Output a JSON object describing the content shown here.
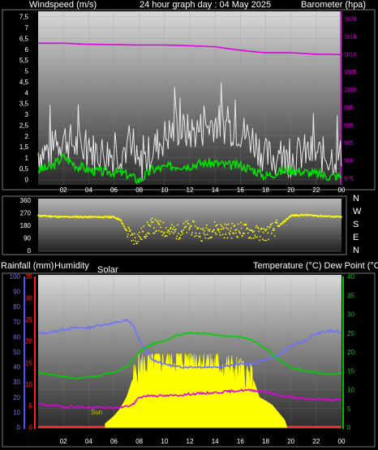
{
  "header": {
    "left_label": "Windspeed (m/s)",
    "title": "24 hour graph day : 04 May 2025",
    "right_label": "Barometer (hpa)"
  },
  "colors": {
    "windspeed": "#e8e8e8",
    "wind_avg": "#00e000",
    "barometer": "#e000e0",
    "direction": "#ffff00",
    "humidity": "#7070ff",
    "temperature": "#00d000",
    "dewpoint": "#e000e0",
    "solar": "#ffff00",
    "rain": "#ff2020"
  },
  "chart_data": [
    {
      "type": "line",
      "name": "wind-barometer",
      "x_ticks": [
        "02",
        "04",
        "06",
        "08",
        "10",
        "12",
        "14",
        "16",
        "18",
        "20",
        "22",
        "00"
      ],
      "y_left_ticks": [
        "0",
        "0,5",
        "1",
        "1,5",
        "2",
        "2,5",
        "3",
        "3,5",
        "4",
        "4,5",
        "5",
        "5,5",
        "6",
        "6,5",
        "7",
        "7,5"
      ],
      "y_left_range": [
        0,
        8
      ],
      "y_right_ticks": [
        "975",
        "980",
        "985",
        "990",
        "995",
        "1000",
        "1005",
        "1010",
        "1015",
        "1020"
      ],
      "y_right_range": [
        973,
        1022
      ],
      "series": [
        {
          "key": "barometer",
          "axis": "right",
          "hours": [
            0,
            2,
            4,
            6,
            8,
            10,
            12,
            14,
            16,
            18,
            20,
            22,
            24
          ],
          "values": [
            1013,
            1013,
            1012.7,
            1012.6,
            1012.5,
            1012.5,
            1012.3,
            1012,
            1011,
            1010.3,
            1010.3,
            1009.9,
            1009.8
          ]
        },
        {
          "key": "windspeed",
          "axis": "left",
          "hours": [
            0,
            1,
            2,
            3,
            4,
            5,
            6,
            7,
            8,
            9,
            10,
            11,
            12,
            13,
            14,
            15,
            16,
            17,
            18,
            19,
            20,
            21,
            22,
            23,
            24
          ],
          "values": [
            1.5,
            1.6,
            2.2,
            1.8,
            1.6,
            1.5,
            1.4,
            1.7,
            0.8,
            1.6,
            2.2,
            2.6,
            2.4,
            2.6,
            2.9,
            2.7,
            2.5,
            2.1,
            1.3,
            1.2,
            1.2,
            1.5,
            1.4,
            1.3,
            1.3
          ]
        },
        {
          "key": "wind_avg",
          "axis": "left",
          "hours": [
            0,
            1,
            2,
            3,
            4,
            5,
            6,
            7,
            8,
            9,
            10,
            11,
            12,
            13,
            14,
            15,
            16,
            17,
            18,
            19,
            20,
            21,
            22,
            23,
            24
          ],
          "values": [
            0.7,
            0.8,
            1.3,
            0.9,
            0.7,
            0.6,
            0.6,
            0.5,
            0.2,
            0.7,
            0.8,
            0.9,
            0.9,
            1.0,
            1.0,
            0.9,
            0.9,
            0.7,
            0.4,
            0.6,
            0.7,
            0.6,
            0.5,
            0.4,
            0.4
          ]
        }
      ]
    },
    {
      "type": "scatter",
      "name": "wind-direction",
      "y_left_ticks": [
        "360",
        "270",
        "180",
        "90",
        "0"
      ],
      "y_range": [
        0,
        360
      ],
      "compass_labels": [
        "N",
        "W",
        "S",
        "E",
        "N"
      ],
      "series": [
        {
          "key": "direction",
          "hours": [
            0,
            1,
            2,
            3,
            4,
            5,
            6,
            6.5,
            7,
            7.5,
            8,
            9,
            10,
            11,
            12,
            13,
            14,
            15,
            16,
            17,
            18,
            19,
            20,
            21,
            22,
            23,
            24
          ],
          "values": [
            250,
            245,
            240,
            242,
            240,
            240,
            240,
            220,
            140,
            90,
            100,
            180,
            150,
            130,
            170,
            120,
            160,
            140,
            150,
            130,
            120,
            170,
            250,
            255,
            250,
            245,
            240
          ]
        }
      ]
    },
    {
      "type": "line",
      "name": "temp-humidity-solar",
      "header_left": "Rainfall (mm)",
      "header_humidity": "Humidity",
      "header_solar": "Solar",
      "header_right": "Temperature (°C) Dew Point (°C)",
      "sun_label": "Sun",
      "humidity_ticks": [
        "100",
        "90",
        "80",
        "70",
        "60",
        "50",
        "40",
        "30",
        "20",
        "10",
        "0"
      ],
      "rain_ticks": [
        "35",
        "30",
        "25",
        "20",
        "15",
        "10",
        "5",
        "0"
      ],
      "temp_ticks": [
        "40",
        "35",
        "30",
        "25",
        "20",
        "15",
        "10",
        "5",
        "0"
      ],
      "temp_range": [
        0,
        40
      ],
      "humidity_range": [
        0,
        100
      ],
      "x_ticks": [
        "02",
        "04",
        "06",
        "08",
        "10",
        "12",
        "14",
        "16",
        "18",
        "20",
        "22",
        "00"
      ],
      "series": [
        {
          "key": "humidity",
          "axis": "humidity",
          "hours": [
            0,
            1,
            2,
            3,
            4,
            5,
            6,
            7,
            7.5,
            8,
            9,
            10,
            11,
            12,
            13,
            14,
            15,
            16,
            17,
            18,
            19,
            20,
            21,
            22,
            23,
            24
          ],
          "values": [
            62,
            63,
            65,
            66,
            66,
            68,
            69,
            71,
            68,
            58,
            45,
            42,
            40,
            40,
            40,
            40,
            41,
            42,
            42,
            45,
            48,
            54,
            57,
            62,
            64,
            63
          ]
        },
        {
          "key": "temperature",
          "axis": "temp",
          "hours": [
            0,
            1,
            2,
            3,
            4,
            5,
            6,
            7,
            7.5,
            8,
            9,
            10,
            11,
            12,
            13,
            14,
            15,
            16,
            17,
            18,
            19,
            20,
            21,
            22,
            23,
            24
          ],
          "values": [
            14.5,
            14,
            13.5,
            13,
            13.3,
            13.8,
            14.5,
            16,
            18,
            20,
            22,
            23,
            24.5,
            25,
            25,
            24.5,
            24,
            24,
            23,
            21,
            18,
            16,
            15,
            14.5,
            14,
            14.5
          ]
        },
        {
          "key": "dewpoint",
          "axis": "temp",
          "hours": [
            0,
            1,
            2,
            3,
            4,
            5,
            6,
            7,
            7.5,
            8,
            9,
            10,
            11,
            12,
            13,
            14,
            15,
            16,
            17,
            18,
            19,
            20,
            21,
            22,
            23,
            24
          ],
          "values": [
            6.2,
            5.8,
            5.5,
            5.5,
            5.3,
            5.3,
            5.2,
            5.5,
            6,
            8,
            8.5,
            8.3,
            8.5,
            8.8,
            9,
            9.2,
            9.5,
            9.8,
            9.8,
            9.5,
            8.5,
            8,
            7.5,
            7.5,
            7.3,
            7.5
          ]
        },
        {
          "key": "solar",
          "axis": "temp",
          "hours": [
            5.3,
            6,
            6.5,
            7,
            7.5,
            8,
            9,
            10,
            11,
            12,
            13,
            14,
            15,
            16,
            17,
            17.5,
            18,
            18.5,
            19,
            19.5,
            19.7
          ],
          "values": [
            1,
            3,
            5,
            8,
            13,
            16,
            17,
            18,
            18,
            19,
            18,
            17,
            16,
            15,
            13,
            8,
            7,
            6,
            4,
            2,
            0
          ]
        },
        {
          "key": "rain",
          "axis": "rain",
          "hours": [
            0,
            24
          ],
          "values": [
            0,
            0
          ]
        }
      ]
    }
  ]
}
